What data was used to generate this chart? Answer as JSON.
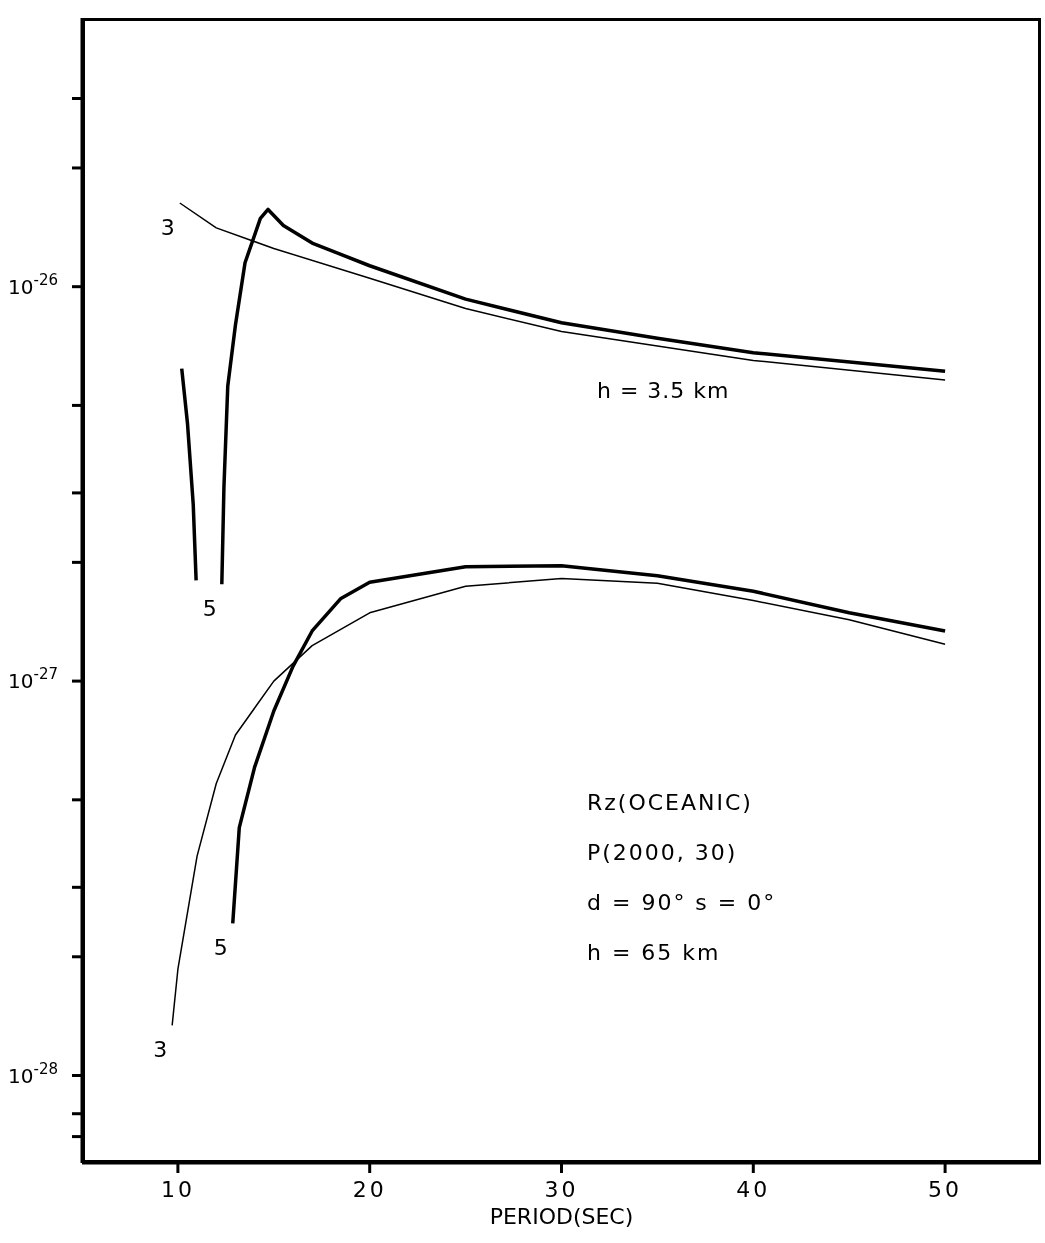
{
  "chart_data": {
    "type": "line",
    "xlabel": "PERIOD(SEC)",
    "log": "y",
    "xlim": [
      5,
      55
    ],
    "xticks": [
      10,
      20,
      30,
      40,
      50
    ],
    "ylim": [
      6e-29,
      4.8e-26
    ],
    "yticks": [
      {
        "value": 3e-26,
        "label": null
      },
      {
        "value": 2e-26,
        "label": null
      },
      {
        "value": 1e-26,
        "label": "10$^{-26}$"
      },
      {
        "value": 5e-27,
        "label": null
      },
      {
        "value": 3e-27,
        "label": null
      },
      {
        "value": 2e-27,
        "label": null
      },
      {
        "value": 1e-27,
        "label": "10$^{-27}$"
      },
      {
        "value": 5e-28,
        "label": null
      },
      {
        "value": 3e-28,
        "label": null
      },
      {
        "value": 2e-28,
        "label": null
      },
      {
        "value": 1e-28,
        "label": "10$^{-28}$"
      },
      {
        "value": 8e-29,
        "label": null
      },
      {
        "value": 7e-29,
        "label": null
      }
    ],
    "marker": "none",
    "line_style": "solid",
    "series": [
      {
        "name": "3",
        "color": "#000000",
        "x": [
          10.1,
          12,
          15,
          20,
          25,
          30,
          40,
          50
        ],
        "values": [
          1.63e-26,
          1.41e-26,
          1.25e-26,
          1.05e-26,
          8.8e-27,
          7.7e-27,
          6.5e-27,
          5.8e-27
        ]
      },
      {
        "name": "5",
        "color": "#000000",
        "x": [
          10.2,
          10.5,
          10.8,
          10.95,
          11.6,
          12.29,
          12.4,
          12.6,
          13,
          13.5,
          14.3,
          14.7,
          15.5,
          17,
          20,
          25,
          30,
          35,
          40,
          50
        ],
        "values": [
          6.2e-27,
          4.5e-27,
          2.8e-27,
          1.8e-27,
          null,
          1.76e-27,
          3.1e-27,
          5.6e-27,
          8e-27,
          1.15e-26,
          1.49e-26,
          1.57e-26,
          1.43e-26,
          1.29e-26,
          1.13e-26,
          9.3e-27,
          8.1e-27,
          7.4e-27,
          6.8e-27,
          6.1e-27
        ]
      },
      {
        "name": "3",
        "color": "#000000",
        "x": [
          9.7,
          10,
          11,
          12,
          13,
          15,
          17,
          20,
          25,
          30,
          35,
          40,
          45,
          50
        ],
        "values": [
          1.34e-28,
          1.86e-28,
          3.6e-28,
          5.5e-28,
          7.3e-28,
          1e-27,
          1.23e-27,
          1.49e-27,
          1.74e-27,
          1.82e-27,
          1.77e-27,
          1.6e-27,
          1.43e-27,
          1.24e-27
        ]
      },
      {
        "name": "5",
        "color": "#000000",
        "x": [
          12.86,
          13.2,
          14,
          15,
          16,
          17,
          18.5,
          20,
          25,
          30,
          35,
          40,
          45,
          50
        ],
        "values": [
          2.43e-28,
          4.25e-28,
          6.05e-28,
          8.4e-28,
          1.09e-27,
          1.34e-27,
          1.62e-27,
          1.78e-27,
          1.95e-27,
          1.96e-27,
          1.85e-27,
          1.69e-27,
          1.49e-27,
          1.34e-27
        ]
      }
    ],
    "annotations": [
      "h = 3.5 km",
      "Rz(OCEANIC)",
      "P(2000, 30)",
      "d = 90°  s = 0°",
      "h = 65 km"
    ]
  }
}
